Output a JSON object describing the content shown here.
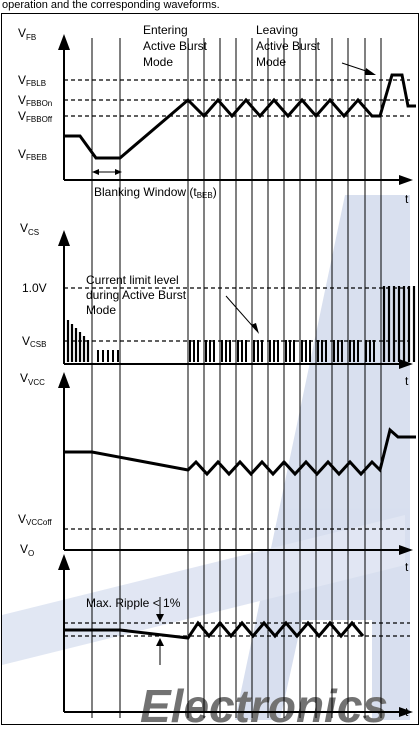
{
  "top_caption": "operation and the corresponding waveforms.",
  "watermark_text": "Electronics",
  "panels": {
    "vfb": {
      "axis_label": "V",
      "axis_sub": "FB",
      "time_label": "t",
      "levels": [
        {
          "label": "V",
          "sub": "FBLB"
        },
        {
          "label": "V",
          "sub": "FBBOn"
        },
        {
          "label": "V",
          "sub": "FBBOff"
        },
        {
          "label": "V",
          "sub": "FBEB"
        }
      ],
      "annotations": {
        "entering": [
          "Entering",
          "Active Burst",
          "Mode"
        ],
        "leaving": [
          "Leaving",
          "Active Burst",
          "Mode"
        ],
        "blanking_main": "Blanking Window (t",
        "blanking_sub": "BEB",
        "blanking_end": ")"
      }
    },
    "vcs": {
      "axis_label": "V",
      "axis_sub": "CS",
      "time_label": "t",
      "level_1v": "1.0V",
      "level_csb": {
        "label": "V",
        "sub": "CSB"
      },
      "annotation": [
        "Current limit level",
        "during Active Burst",
        "Mode"
      ]
    },
    "vvcc": {
      "axis_label": "V",
      "axis_sub": "VCC",
      "time_label": "t",
      "level": {
        "label": "V",
        "sub": "VCCoff"
      }
    },
    "vo": {
      "axis_label": "V",
      "axis_sub": "O",
      "time_label": "t",
      "annotation": "Max. Ripple < 1%"
    }
  },
  "colors": {
    "line": "#000000",
    "watermark": "#b9c6e2",
    "background": "#ffffff"
  }
}
